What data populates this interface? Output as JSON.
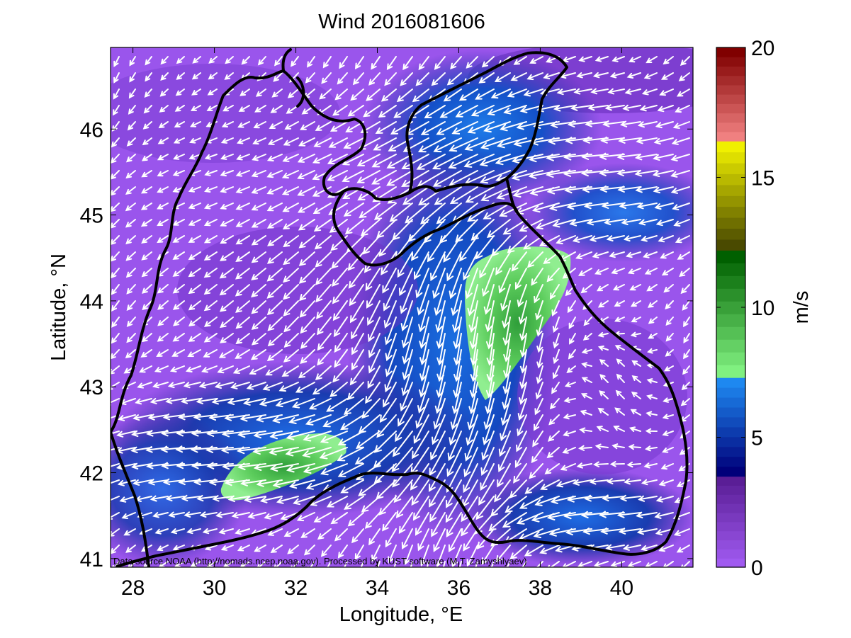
{
  "title": "Wind 2016081606",
  "map": {
    "xlabel": "Longitude, °E",
    "ylabel": "Latitude, °N",
    "xlim": [
      27.45,
      41.75
    ],
    "ylim": [
      40.9,
      46.95
    ],
    "xticks": [
      28,
      30,
      32,
      34,
      36,
      38,
      40
    ],
    "yticks": [
      41,
      42,
      43,
      44,
      45,
      46
    ],
    "credit": "Data source NOAA (http://nomads.ncep.noaa.gov). Processed by KUST software (M.T. Zamyshlyaev)",
    "field": "wind speed and direction (arrows)",
    "land_color": "#a05af0",
    "arrow_color": "#ffffff",
    "coastline_color": "#000000"
  },
  "colorbar": {
    "label": "m/s",
    "range": [
      0,
      20
    ],
    "ticks": [
      0,
      5,
      10,
      15,
      20
    ],
    "segments": [
      {
        "from": 0,
        "to": 3.5,
        "color_low": "#a05af0",
        "color_high": "#5a1e96"
      },
      {
        "from": 3.5,
        "to": 7.3,
        "color_low": "#00007a",
        "color_high": "#1e88f0"
      },
      {
        "from": 7.3,
        "to": 12.2,
        "color_low": "#80f080",
        "color_high": "#006000"
      },
      {
        "from": 12.2,
        "to": 16.4,
        "color_low": "#4a4a00",
        "color_high": "#f0f000"
      },
      {
        "from": 16.4,
        "to": 20,
        "color_low": "#f08080",
        "color_high": "#800000"
      }
    ]
  }
}
